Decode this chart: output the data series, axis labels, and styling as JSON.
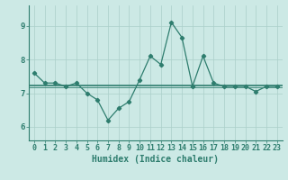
{
  "x": [
    0,
    1,
    2,
    3,
    4,
    5,
    6,
    7,
    8,
    9,
    10,
    11,
    12,
    13,
    14,
    15,
    16,
    17,
    18,
    19,
    20,
    21,
    22,
    23
  ],
  "y": [
    7.6,
    7.3,
    7.3,
    7.2,
    7.3,
    7.0,
    6.8,
    6.2,
    6.55,
    6.75,
    7.4,
    8.1,
    7.85,
    9.1,
    8.65,
    7.2,
    8.1,
    7.3,
    7.2,
    7.2,
    7.2,
    7.05,
    7.2,
    7.2
  ],
  "hlines": [
    7.18,
    7.22,
    7.25
  ],
  "line_color": "#2e7d6e",
  "marker_color": "#2e7d6e",
  "bg_color": "#cce9e5",
  "grid_color": "#aacfc9",
  "axis_color": "#2e7d6e",
  "xlabel": "Humidex (Indice chaleur)",
  "xlabel_fontsize": 7,
  "tick_fontsize": 6,
  "ylim": [
    5.6,
    9.6
  ],
  "xlim": [
    -0.5,
    23.5
  ],
  "yticks": [
    6,
    7,
    8,
    9
  ],
  "xticks": [
    0,
    1,
    2,
    3,
    4,
    5,
    6,
    7,
    8,
    9,
    10,
    11,
    12,
    13,
    14,
    15,
    16,
    17,
    18,
    19,
    20,
    21,
    22,
    23
  ]
}
